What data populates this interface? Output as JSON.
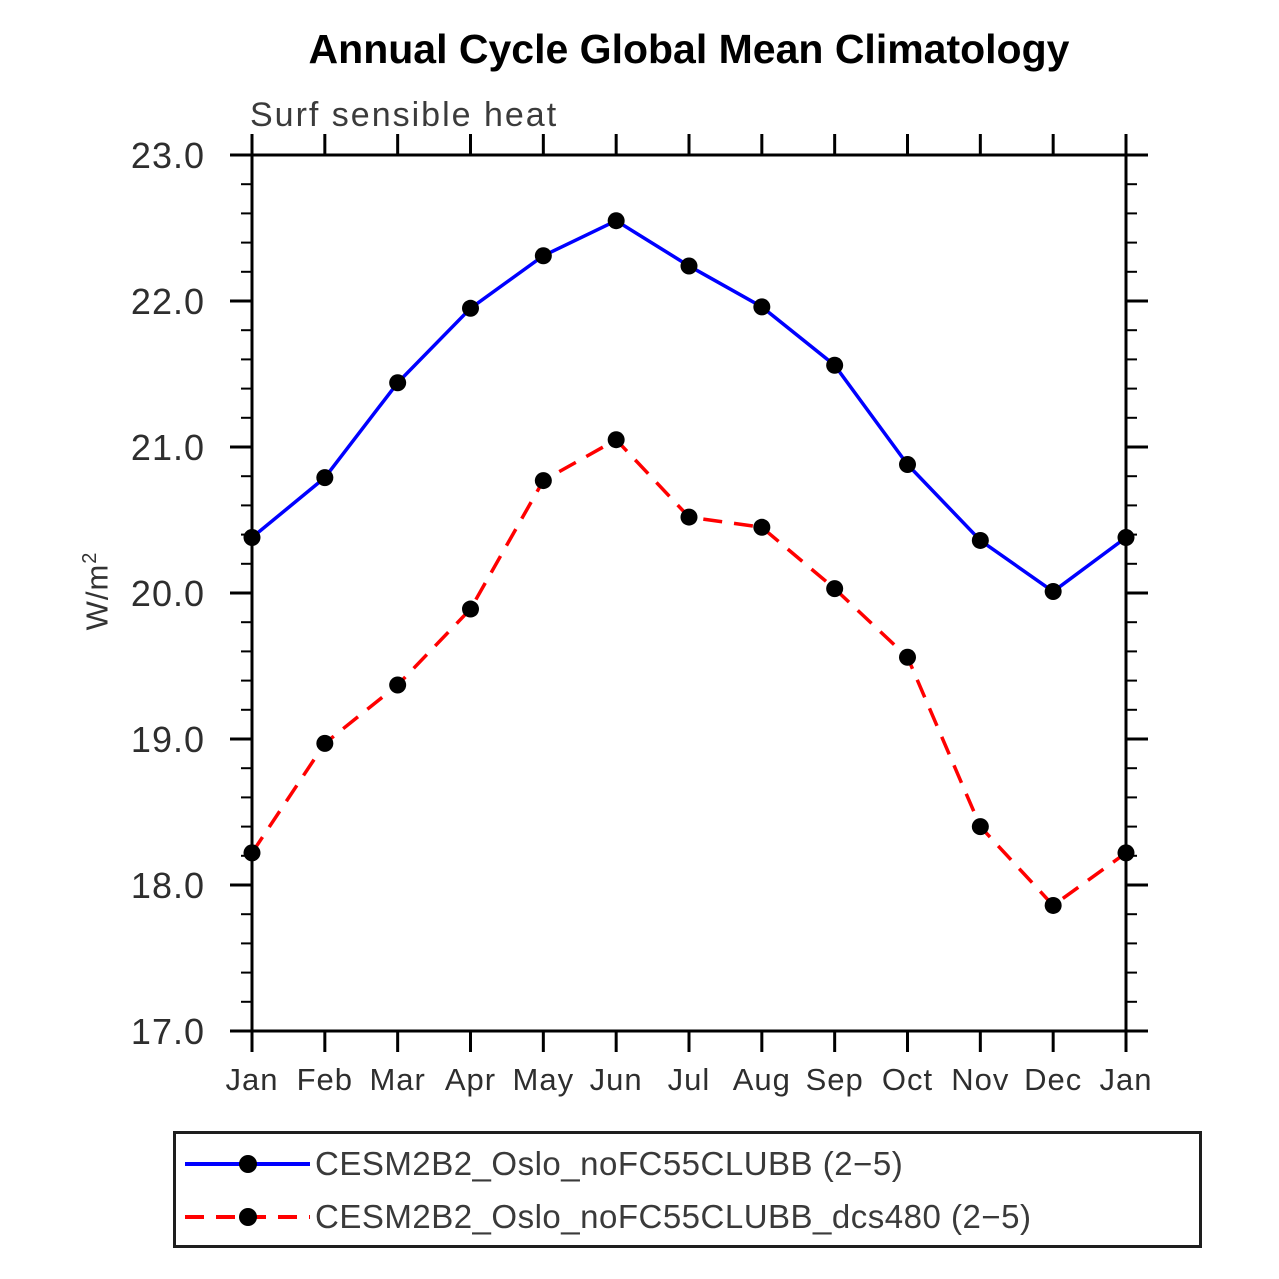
{
  "title": "Annual Cycle Global Mean Climatology",
  "subtitle": "Surf sensible heat",
  "y_axis": {
    "label_base": "W/m",
    "label_exponent": "2"
  },
  "chart_data": {
    "type": "line",
    "categories": [
      "Jan",
      "Feb",
      "Mar",
      "Apr",
      "May",
      "Jun",
      "Jul",
      "Aug",
      "Sep",
      "Oct",
      "Nov",
      "Dec",
      "Jan"
    ],
    "xlabel": "",
    "ylabel": "W/m2",
    "ylim": [
      17.0,
      23.0
    ],
    "y_major_step": 1.0,
    "y_minor_step": 0.2,
    "ytick_labels": [
      "17.0",
      "18.0",
      "19.0",
      "20.0",
      "21.0",
      "22.0",
      "23.0"
    ],
    "grid": false,
    "frame": true,
    "tick_style": "outward-all-sides",
    "axis_color": "#000000",
    "legend_position": "bottom-left-box",
    "series": [
      {
        "name": "CESM2B2_Oslo_noFC55CLUBB (2−5)",
        "color": "#0000ff",
        "line_style": "solid",
        "marker": "filled-circle",
        "marker_color": "#000000",
        "values": [
          20.38,
          20.79,
          21.44,
          21.95,
          22.31,
          22.55,
          22.24,
          21.96,
          21.56,
          20.88,
          20.36,
          20.01,
          20.38
        ]
      },
      {
        "name": "CESM2B2_Oslo_noFC55CLUBB_dcs480 (2−5)",
        "color": "#ff0000",
        "line_style": "dashed",
        "dash_pattern": "19 12",
        "marker": "filled-circle",
        "marker_color": "#000000",
        "values": [
          18.22,
          18.97,
          19.37,
          19.89,
          20.77,
          21.05,
          20.52,
          20.45,
          20.03,
          19.56,
          18.4,
          17.86,
          18.22
        ]
      }
    ]
  }
}
